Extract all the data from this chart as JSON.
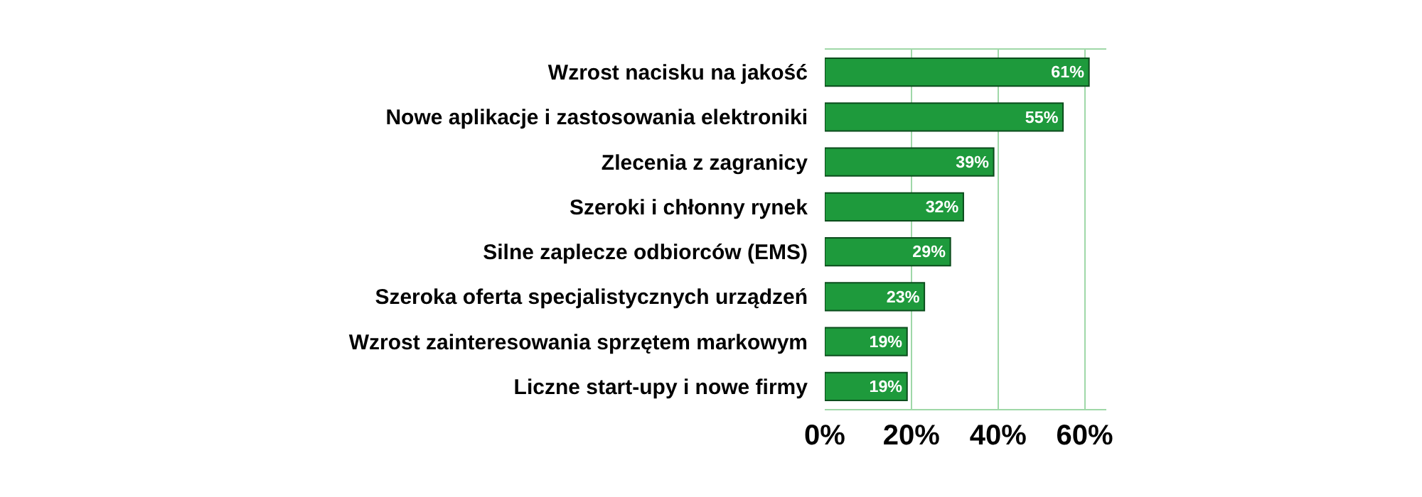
{
  "chart_data": {
    "type": "bar",
    "orientation": "horizontal",
    "categories": [
      "Wzrost nacisku na jakość",
      "Nowe aplikacje i zastosowania elektroniki",
      "Zlecenia z zagranicy",
      "Szeroki i chłonny rynek",
      "Silne zaplecze odbiorców (EMS)",
      "Szeroka oferta specjalistycznych urządzeń",
      "Wzrost zainteresowania sprzętem markowym",
      "Liczne start-upy i nowe firmy"
    ],
    "values": [
      61,
      55,
      39,
      32,
      29,
      23,
      19,
      19
    ],
    "value_labels": [
      "61%",
      "55%",
      "39%",
      "32%",
      "29%",
      "23%",
      "19%",
      "19%"
    ],
    "color": "#1e9a3c",
    "xlim": [
      0,
      65
    ],
    "xticks": [
      {
        "value": 0,
        "label": "0%"
      },
      {
        "value": 20,
        "label": "20%"
      },
      {
        "value": 40,
        "label": "40%"
      },
      {
        "value": 60,
        "label": "60%"
      }
    ],
    "grid": "x"
  }
}
